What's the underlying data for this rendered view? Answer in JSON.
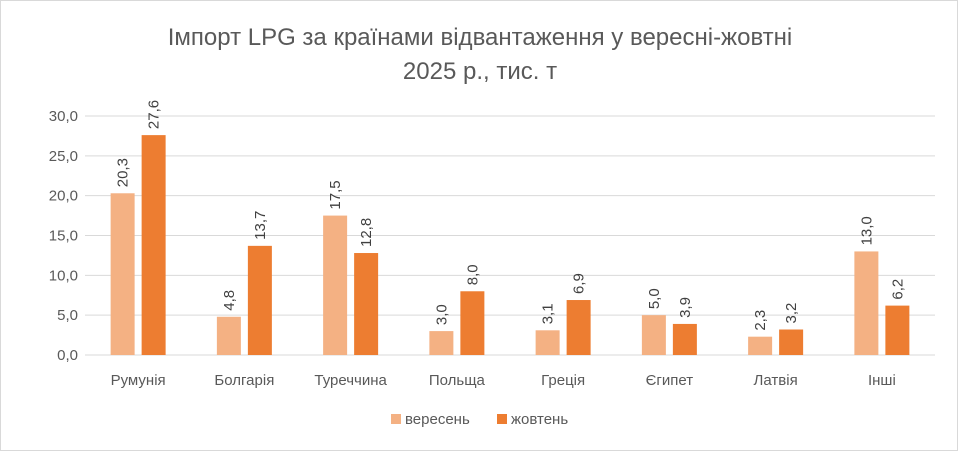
{
  "chart_data": {
    "type": "bar",
    "title_lines": [
      "Імпорт LPG за країнами відвантаження у вересні-жовтні",
      "2025 р., тис. т"
    ],
    "xlabel": "",
    "ylabel": "",
    "categories": [
      "Румунія",
      "Болгарія",
      "Туреччина",
      "Польща",
      "Греція",
      "Єгипет",
      "Латвія",
      "Інші"
    ],
    "series": [
      {
        "name": "вересень",
        "color": "#f4b183",
        "values": [
          20.3,
          4.8,
          17.5,
          3.0,
          3.1,
          5.0,
          2.3,
          13.0
        ],
        "labels": [
          "20,3",
          "4,8",
          "17,5",
          "3,0",
          "3,1",
          "5,0",
          "2,3",
          "13,0"
        ]
      },
      {
        "name": "жовтень",
        "color": "#ed7d31",
        "values": [
          27.6,
          13.7,
          12.8,
          8.0,
          6.9,
          3.9,
          3.2,
          6.2
        ],
        "labels": [
          "27,6",
          "13,7",
          "12,8",
          "8,0",
          "6,9",
          "3,9",
          "3,2",
          "6,2"
        ]
      }
    ],
    "ylim": [
      0,
      30
    ],
    "yticks": [
      0,
      5,
      10,
      15,
      20,
      25,
      30
    ],
    "ytick_labels": [
      "0,0",
      "5,0",
      "10,0",
      "15,0",
      "20,0",
      "25,0",
      "30,0"
    ],
    "grid": true,
    "legend_position": "bottom"
  }
}
